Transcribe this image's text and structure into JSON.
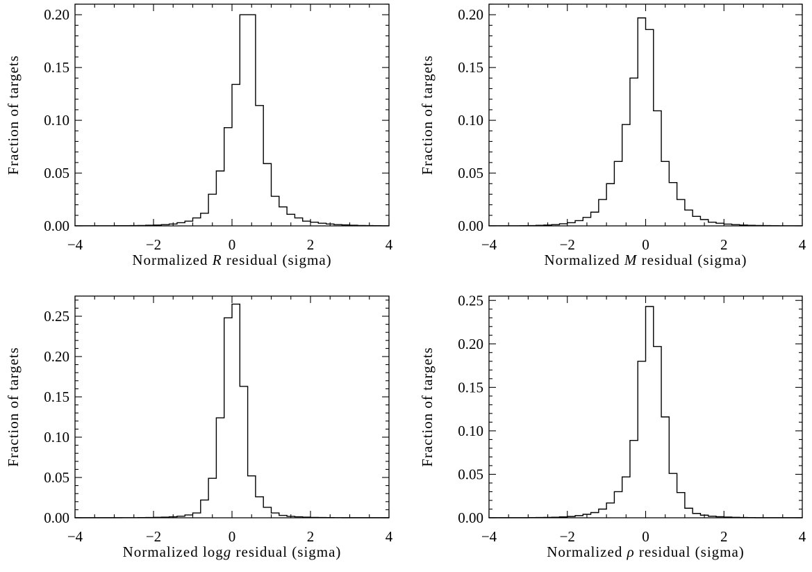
{
  "chart_data": [
    {
      "type": "histogram",
      "xlabel": {
        "prefix": "Normalized ",
        "symbol": "R",
        "suffix": " residual (sigma)"
      },
      "ylabel": "Fraction of targets",
      "xlim": [
        -4,
        4
      ],
      "ylim": [
        0,
        0.21
      ],
      "xticks": [
        -4,
        -2,
        0,
        2,
        4
      ],
      "yticks": [
        0.0,
        0.05,
        0.1,
        0.15,
        0.2
      ],
      "ytick_labels": [
        "0.00",
        "0.05",
        "0.10",
        "0.15",
        "0.20"
      ],
      "bin_width": 0.2,
      "bin_start": -4,
      "values": [
        0.0001,
        0.0001,
        0.0001,
        0.0001,
        0.0001,
        0.0002,
        0.0002,
        0.0003,
        0.0004,
        0.0006,
        0.0008,
        0.0012,
        0.0018,
        0.003,
        0.0045,
        0.0075,
        0.012,
        0.03,
        0.052,
        0.093,
        0.134,
        0.2,
        0.2,
        0.114,
        0.059,
        0.028,
        0.018,
        0.011,
        0.0075,
        0.0045,
        0.0035,
        0.0025,
        0.0018,
        0.0012,
        0.0009,
        0.0006,
        0.0004,
        0.0003,
        0.0002,
        0.0001
      ]
    },
    {
      "type": "histogram",
      "xlabel": {
        "prefix": "Normalized ",
        "symbol": "M",
        "suffix": " residual (sigma)"
      },
      "ylabel": "Fraction of targets",
      "xlim": [
        -4,
        4
      ],
      "ylim": [
        0,
        0.21
      ],
      "xticks": [
        -4,
        -2,
        0,
        2,
        4
      ],
      "yticks": [
        0.0,
        0.05,
        0.1,
        0.15,
        0.2
      ],
      "ytick_labels": [
        "0.00",
        "0.05",
        "0.10",
        "0.15",
        "0.20"
      ],
      "bin_width": 0.2,
      "bin_start": -4,
      "values": [
        0.0001,
        0.0001,
        0.0001,
        0.0001,
        0.0002,
        0.0003,
        0.0005,
        0.0008,
        0.0012,
        0.002,
        0.003,
        0.005,
        0.008,
        0.013,
        0.025,
        0.04,
        0.061,
        0.096,
        0.14,
        0.197,
        0.186,
        0.109,
        0.061,
        0.041,
        0.025,
        0.015,
        0.009,
        0.006,
        0.0035,
        0.0025,
        0.0017,
        0.0012,
        0.0008,
        0.0005,
        0.0004,
        0.0003,
        0.0002,
        0.0001,
        0.0001,
        0.0001
      ]
    },
    {
      "type": "histogram",
      "xlabel": {
        "prefix": "Normalized ",
        "symbol": "log",
        "italic_suffix": "g",
        "suffix": " residual (sigma)"
      },
      "ylabel": "Fraction of targets",
      "xlim": [
        -4,
        4
      ],
      "ylim": [
        0,
        0.275
      ],
      "xticks": [
        -4,
        -2,
        0,
        2,
        4
      ],
      "yticks": [
        0.0,
        0.05,
        0.1,
        0.15,
        0.2,
        0.25
      ],
      "ytick_labels": [
        "0.00",
        "0.05",
        "0.10",
        "0.15",
        "0.20",
        "0.25"
      ],
      "bin_width": 0.2,
      "bin_start": -4,
      "values": [
        0.0001,
        0.0001,
        0.0001,
        0.0001,
        0.0001,
        0.0001,
        0.0002,
        0.0002,
        0.0003,
        0.0004,
        0.0006,
        0.0008,
        0.0012,
        0.002,
        0.0035,
        0.006,
        0.022,
        0.049,
        0.124,
        0.248,
        0.265,
        0.163,
        0.052,
        0.026,
        0.013,
        0.006,
        0.003,
        0.0018,
        0.0012,
        0.0008,
        0.0005,
        0.0004,
        0.0003,
        0.0002,
        0.0001,
        0.0001,
        0.0001,
        0.0001,
        0.0001,
        0.0001
      ]
    },
    {
      "type": "histogram",
      "xlabel": {
        "prefix": "Normalized ",
        "symbol": "ρ",
        "suffix": " residual (sigma)"
      },
      "ylabel": "Fraction of targets",
      "xlim": [
        -4,
        4
      ],
      "ylim": [
        0,
        0.255
      ],
      "xticks": [
        -4,
        -2,
        0,
        2,
        4
      ],
      "yticks": [
        0.0,
        0.05,
        0.1,
        0.15,
        0.2,
        0.25
      ],
      "ytick_labels": [
        "0.00",
        "0.05",
        "0.10",
        "0.15",
        "0.20",
        "0.25"
      ],
      "bin_width": 0.2,
      "bin_start": -4,
      "values": [
        0.0001,
        0.0001,
        0.0001,
        0.0001,
        0.0001,
        0.0002,
        0.0003,
        0.0004,
        0.0006,
        0.001,
        0.0015,
        0.0025,
        0.004,
        0.006,
        0.01,
        0.017,
        0.03,
        0.047,
        0.089,
        0.18,
        0.243,
        0.197,
        0.116,
        0.051,
        0.029,
        0.011,
        0.005,
        0.003,
        0.0018,
        0.0012,
        0.0008,
        0.0005,
        0.0003,
        0.0002,
        0.0001,
        0.0001,
        0.0001,
        0.0001,
        0.0001,
        0.0001
      ]
    }
  ]
}
